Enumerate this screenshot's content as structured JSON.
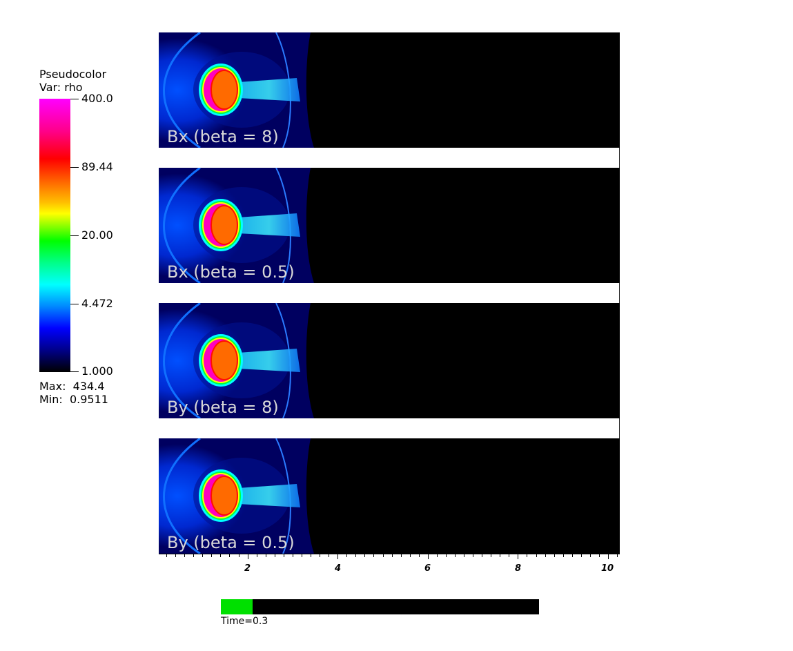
{
  "legend": {
    "plot_type": "Pseudocolor",
    "variable": "Var: rho",
    "ticks": [
      "400.0",
      "89.44",
      "20.00",
      "4.472",
      "1.000"
    ],
    "max": "Max:  434.4",
    "min": "Min:  0.9511",
    "colors": [
      "#ff00ff",
      "#ff0000",
      "#ffff00",
      "#00ff00",
      "#00ffff",
      "#0000ff",
      "#000000"
    ]
  },
  "panels": [
    {
      "label": "Bx (beta = 8)"
    },
    {
      "label": "Bx (beta = 0.5)"
    },
    {
      "label": "By (beta = 8)"
    },
    {
      "label": "By (beta = 0.5)"
    }
  ],
  "axis": {
    "labels": [
      "2",
      "4",
      "6",
      "8",
      "10"
    ]
  },
  "time": {
    "label": "Time=0.3",
    "progress": 0.1
  }
}
